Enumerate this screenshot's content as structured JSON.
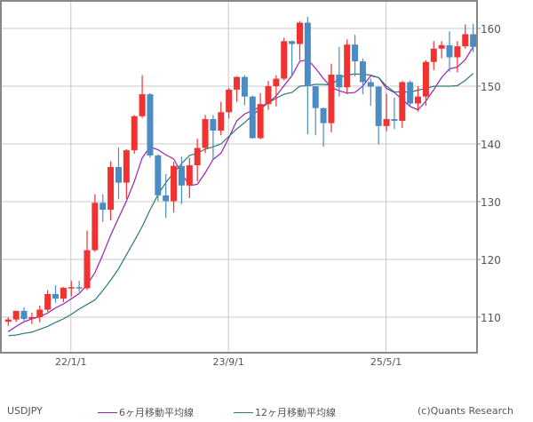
{
  "chart_data": {
    "type": "candlestick",
    "title": "USDJPY",
    "interval": "monthly",
    "xlabel": "",
    "ylabel": "",
    "ylim": [
      103.8,
      165
    ],
    "yticks": [
      110,
      120,
      130,
      140,
      150,
      160
    ],
    "xtick_labels": [
      {
        "label": "22/1/1",
        "index": 8
      },
      {
        "label": "23/9/1",
        "index": 28
      },
      {
        "label": "25/5/1",
        "index": 48
      }
    ],
    "grid": true,
    "legend_position": "bottom",
    "colors": {
      "up": "#f03232",
      "down": "#4b8cc3",
      "ma6": "#9b1fb4",
      "ma12": "#2a7a78",
      "grid": "#c8c8c8",
      "axis": "#888888"
    },
    "candles": [
      {
        "m": "21/05",
        "o": 109.2,
        "h": 110.0,
        "l": 108.5,
        "c": 109.6
      },
      {
        "m": "21/06",
        "o": 109.6,
        "h": 111.0,
        "l": 109.2,
        "c": 111.1
      },
      {
        "m": "21/07",
        "o": 111.1,
        "h": 111.7,
        "l": 109.4,
        "c": 109.7
      },
      {
        "m": "21/08",
        "o": 109.7,
        "h": 110.8,
        "l": 108.8,
        "c": 110.0
      },
      {
        "m": "21/09",
        "o": 110.0,
        "h": 112.0,
        "l": 109.1,
        "c": 111.3
      },
      {
        "m": "21/10",
        "o": 111.3,
        "h": 114.7,
        "l": 110.9,
        "c": 114.0
      },
      {
        "m": "21/11",
        "o": 114.0,
        "h": 115.5,
        "l": 112.5,
        "c": 113.2
      },
      {
        "m": "21/12",
        "o": 113.2,
        "h": 115.2,
        "l": 112.6,
        "c": 115.1
      },
      {
        "m": "22/01",
        "o": 115.1,
        "h": 116.3,
        "l": 113.6,
        "c": 115.2
      },
      {
        "m": "22/02",
        "o": 115.2,
        "h": 116.3,
        "l": 114.4,
        "c": 115.0
      },
      {
        "m": "22/03",
        "o": 115.0,
        "h": 125.0,
        "l": 114.7,
        "c": 121.6
      },
      {
        "m": "22/04",
        "o": 121.6,
        "h": 131.3,
        "l": 121.3,
        "c": 129.8
      },
      {
        "m": "22/05",
        "o": 129.8,
        "h": 131.3,
        "l": 126.5,
        "c": 128.6
      },
      {
        "m": "22/06",
        "o": 128.6,
        "h": 137.0,
        "l": 126.8,
        "c": 136.0
      },
      {
        "m": "22/07",
        "o": 136.0,
        "h": 139.4,
        "l": 130.4,
        "c": 133.3
      },
      {
        "m": "22/08",
        "o": 133.3,
        "h": 139.1,
        "l": 130.5,
        "c": 138.9
      },
      {
        "m": "22/09",
        "o": 138.9,
        "h": 145.0,
        "l": 138.3,
        "c": 144.8
      },
      {
        "m": "22/10",
        "o": 144.8,
        "h": 151.9,
        "l": 144.5,
        "c": 148.6
      },
      {
        "m": "22/11",
        "o": 148.6,
        "h": 148.8,
        "l": 137.6,
        "c": 138.0
      },
      {
        "m": "22/12",
        "o": 138.0,
        "h": 138.2,
        "l": 130.1,
        "c": 131.1
      },
      {
        "m": "23/01",
        "o": 131.1,
        "h": 134.8,
        "l": 127.2,
        "c": 130.1
      },
      {
        "m": "23/02",
        "o": 130.1,
        "h": 136.9,
        "l": 128.1,
        "c": 136.2
      },
      {
        "m": "23/03",
        "o": 136.2,
        "h": 137.8,
        "l": 129.6,
        "c": 132.8
      },
      {
        "m": "23/04",
        "o": 132.8,
        "h": 137.6,
        "l": 130.6,
        "c": 136.3
      },
      {
        "m": "23/05",
        "o": 136.3,
        "h": 140.9,
        "l": 133.5,
        "c": 139.3
      },
      {
        "m": "23/06",
        "o": 139.3,
        "h": 145.0,
        "l": 138.4,
        "c": 144.3
      },
      {
        "m": "23/07",
        "o": 144.3,
        "h": 145.0,
        "l": 137.3,
        "c": 142.3
      },
      {
        "m": "23/08",
        "o": 142.3,
        "h": 147.3,
        "l": 141.5,
        "c": 145.5
      },
      {
        "m": "23/09",
        "o": 145.5,
        "h": 149.7,
        "l": 144.4,
        "c": 149.4
      },
      {
        "m": "23/10",
        "o": 149.4,
        "h": 151.7,
        "l": 147.3,
        "c": 151.6
      },
      {
        "m": "23/11",
        "o": 151.6,
        "h": 151.9,
        "l": 146.7,
        "c": 148.2
      },
      {
        "m": "23/12",
        "o": 148.2,
        "h": 148.4,
        "l": 140.9,
        "c": 141.0
      },
      {
        "m": "24/01",
        "o": 141.0,
        "h": 148.8,
        "l": 140.8,
        "c": 146.9
      },
      {
        "m": "24/02",
        "o": 146.9,
        "h": 150.9,
        "l": 145.9,
        "c": 150.0
      },
      {
        "m": "24/03",
        "o": 150.0,
        "h": 151.9,
        "l": 146.5,
        "c": 151.3
      },
      {
        "m": "24/04",
        "o": 151.3,
        "h": 158.4,
        "l": 151.0,
        "c": 157.8
      },
      {
        "m": "24/05",
        "o": 157.8,
        "h": 157.9,
        "l": 151.8,
        "c": 157.3
      },
      {
        "m": "24/06",
        "o": 157.3,
        "h": 161.3,
        "l": 154.5,
        "c": 161.0
      },
      {
        "m": "24/07",
        "o": 161.0,
        "h": 162.0,
        "l": 141.7,
        "c": 150.0
      },
      {
        "m": "24/08",
        "o": 150.0,
        "h": 150.0,
        "l": 141.5,
        "c": 146.2
      },
      {
        "m": "24/09",
        "o": 146.2,
        "h": 146.3,
        "l": 139.5,
        "c": 143.6
      },
      {
        "m": "24/10",
        "o": 143.6,
        "h": 153.9,
        "l": 142.0,
        "c": 152.0
      },
      {
        "m": "24/11",
        "o": 152.0,
        "h": 156.8,
        "l": 148.2,
        "c": 149.8
      },
      {
        "m": "24/12",
        "o": 149.8,
        "h": 158.1,
        "l": 148.6,
        "c": 157.2
      },
      {
        "m": "25/01",
        "o": 157.2,
        "h": 158.9,
        "l": 151.7,
        "c": 154.3
      },
      {
        "m": "25/02",
        "o": 154.3,
        "h": 154.8,
        "l": 148.6,
        "c": 150.7
      },
      {
        "m": "25/03",
        "o": 150.7,
        "h": 151.3,
        "l": 146.6,
        "c": 149.9
      },
      {
        "m": "25/04",
        "o": 149.9,
        "h": 150.0,
        "l": 139.9,
        "c": 143.1
      },
      {
        "m": "25/05",
        "o": 143.1,
        "h": 148.7,
        "l": 142.2,
        "c": 144.3
      },
      {
        "m": "25/06",
        "o": 144.3,
        "h": 148.0,
        "l": 142.6,
        "c": 144.0
      },
      {
        "m": "25/07",
        "o": 144.0,
        "h": 150.9,
        "l": 142.8,
        "c": 150.7
      },
      {
        "m": "25/08",
        "o": 150.7,
        "h": 151.0,
        "l": 146.6,
        "c": 147.0
      },
      {
        "m": "25/09",
        "o": 147.0,
        "h": 150.0,
        "l": 145.6,
        "c": 148.2
      },
      {
        "m": "25/10",
        "o": 148.2,
        "h": 154.5,
        "l": 146.6,
        "c": 154.2
      },
      {
        "m": "25/11",
        "o": 154.2,
        "h": 157.8,
        "l": 152.8,
        "c": 156.5
      },
      {
        "m": "25/12",
        "o": 156.5,
        "h": 157.8,
        "l": 154.8,
        "c": 157.1
      },
      {
        "m": "26/01",
        "o": 157.1,
        "h": 159.5,
        "l": 152.5,
        "c": 155.0
      },
      {
        "m": "26/02",
        "o": 155.0,
        "h": 157.8,
        "l": 152.4,
        "c": 156.9
      },
      {
        "m": "26/03",
        "o": 156.9,
        "h": 160.7,
        "l": 156.5,
        "c": 159.0
      },
      {
        "m": "26/04",
        "o": 159.0,
        "h": 160.8,
        "l": 155.9,
        "c": 156.8
      }
    ],
    "series": [
      {
        "name": "6ヶ月移動平均線",
        "color": "#9b1fb4",
        "values": [
          107.5,
          108.4,
          109.2,
          109.7,
          110.1,
          110.7,
          111.6,
          112.3,
          113.2,
          114.1,
          115.6,
          117.7,
          120.8,
          124.2,
          127.2,
          130.1,
          133.5,
          137.6,
          139.5,
          139.0,
          138.1,
          137.4,
          134.9,
          132.8,
          133.0,
          135.0,
          137.3,
          138.4,
          141.1,
          144.0,
          145.2,
          145.8,
          146.4,
          147.1,
          148.3,
          150.1,
          151.8,
          154.3,
          154.6,
          153.1,
          151.3,
          149.8,
          149.2,
          148.8,
          148.9,
          150.0,
          151.8,
          151.5,
          149.6,
          148.9,
          147.7,
          146.5,
          145.9,
          147.4,
          149.4,
          151.5,
          153.0,
          153.3,
          154.6,
          156.8
        ]
      },
      {
        "name": "12ヶ月移動平均線",
        "color": "#2a7a78",
        "values": [
          106.8,
          106.9,
          107.2,
          107.4,
          107.9,
          108.4,
          109.1,
          109.7,
          110.5,
          111.4,
          112.2,
          113.0,
          114.6,
          116.4,
          118.4,
          120.8,
          123.2,
          125.7,
          128.6,
          131.2,
          133.3,
          135.0,
          136.6,
          138.0,
          138.4,
          139.1,
          139.5,
          140.0,
          141.3,
          142.6,
          143.7,
          145.0,
          146.1,
          147.1,
          147.9,
          148.6,
          148.9,
          150.0,
          150.1,
          150.3,
          150.3,
          150.2,
          151.4,
          152.0,
          152.1,
          152.1,
          151.9,
          151.5,
          150.0,
          149.0,
          149.0,
          149.0,
          149.3,
          149.6,
          150.0,
          150.0,
          150.0,
          150.1,
          151.0,
          152.2
        ]
      }
    ]
  },
  "footer": {
    "symbol": "USDJPY",
    "legend": [
      {
        "label": "6ヶ月移動平均線",
        "color": "#9b1fb4"
      },
      {
        "label": "12ヶ月移動平均線",
        "color": "#2a7a78"
      }
    ],
    "copyright": "(c)Quants Research"
  }
}
